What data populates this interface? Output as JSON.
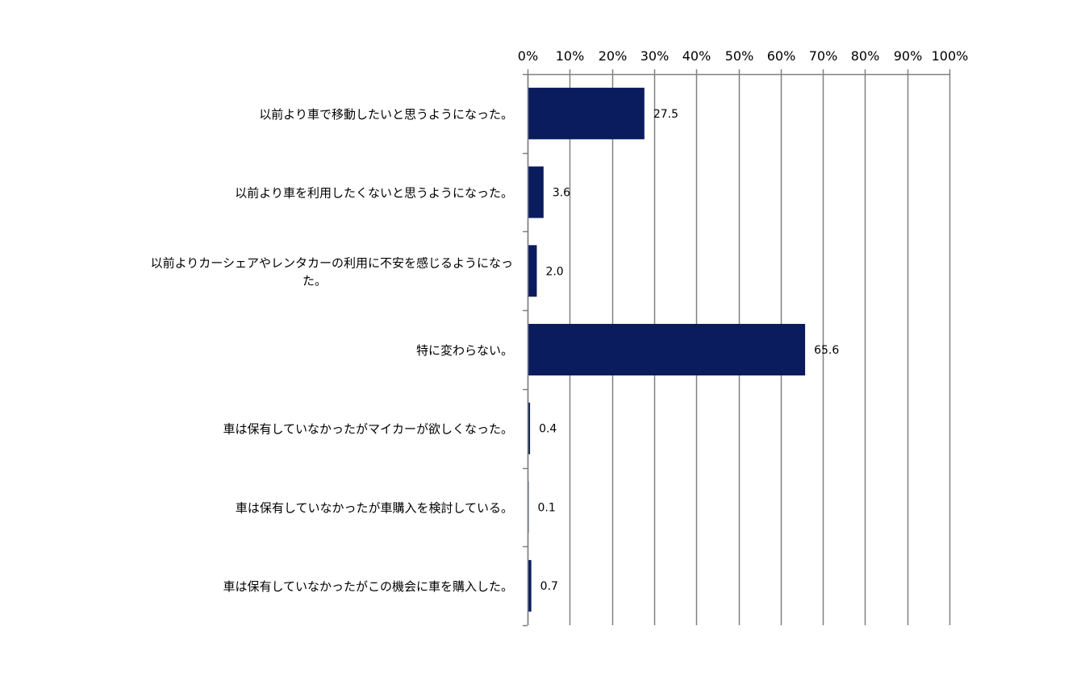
{
  "chart_data": {
    "type": "bar",
    "orientation": "horizontal",
    "categories": [
      "以前より車で移動したいと思うようになった。",
      "以前より車を利用したくないと思うようになった。",
      "以前よりカーシェアやレンタカーの利用に不安を感じるようになった。",
      "特に変わらない。",
      "車は保有していなかったがマイカーが欲しくなった。",
      "車は保有していなかったが車購入を検討している。",
      "車は保有していなかったがこの機会に車を購入した。"
    ],
    "values": [
      27.5,
      3.6,
      2.0,
      65.6,
      0.4,
      0.1,
      0.7
    ],
    "value_labels": [
      "27.5",
      "3.6",
      "2.0",
      "65.6",
      "0.4",
      "0.1",
      "0.7"
    ],
    "xlim": [
      0,
      100
    ],
    "x_ticks": [
      "0%",
      "10%",
      "20%",
      "30%",
      "40%",
      "50%",
      "60%",
      "70%",
      "80%",
      "90%",
      "100%"
    ],
    "x_axis_position": "top",
    "grid": true,
    "legend": "none",
    "colors": {
      "bar": "#0b1c5e",
      "grid": "#808080",
      "axis": "#808080",
      "text": "#000000"
    }
  }
}
